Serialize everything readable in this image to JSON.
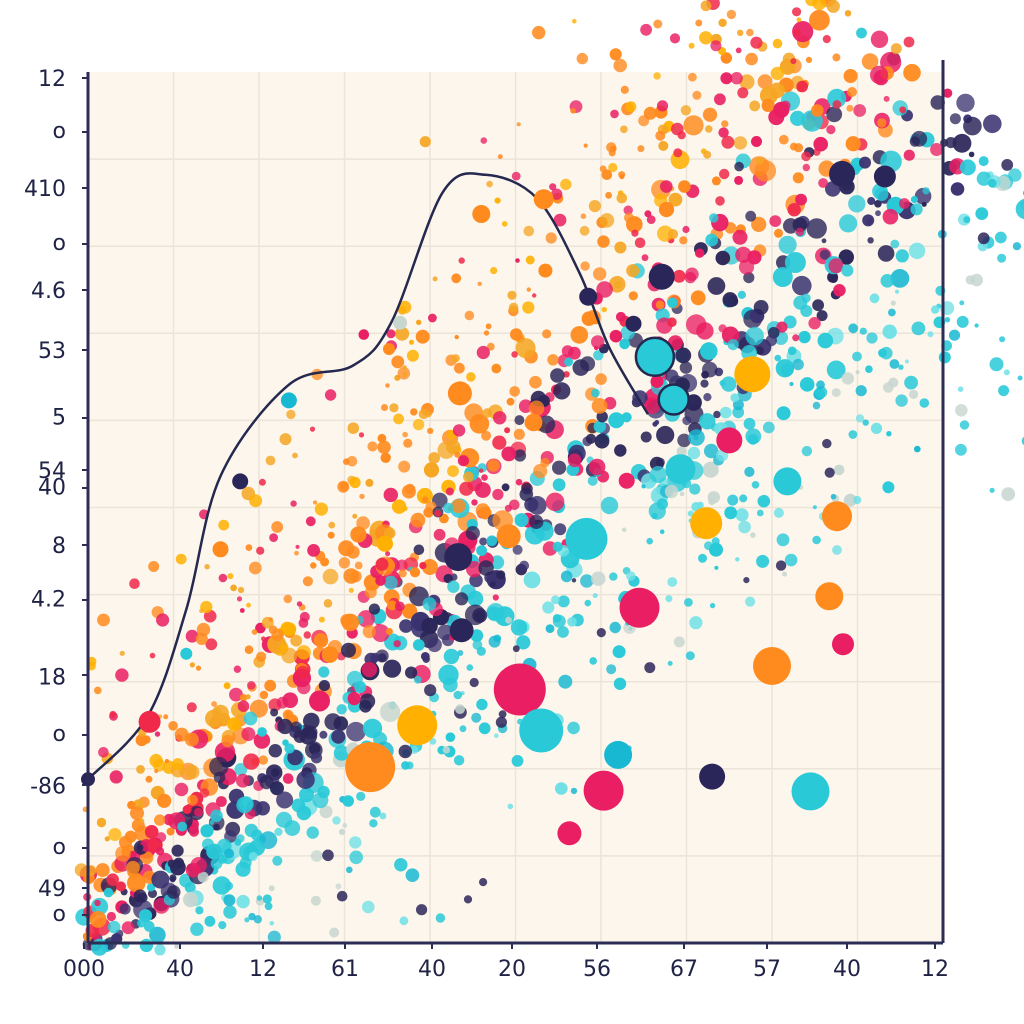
{
  "chart_data": {
    "type": "scatter",
    "title": "",
    "xlabel": "",
    "ylabel": "",
    "grid": true,
    "y_tick_labels": [
      "12",
      "o",
      "410",
      "o",
      "4.6",
      "53",
      "5",
      "54",
      "40",
      "8",
      "4.2",
      "18",
      "o",
      "-86",
      "o",
      "49",
      "o"
    ],
    "x_tick_labels": [
      "000",
      "40",
      "12",
      "61",
      "40",
      "20",
      "56",
      "67",
      "57",
      "40",
      "12"
    ],
    "xlim": [
      0,
      100
    ],
    "ylim": [
      0,
      100
    ],
    "colors": {
      "background": "#fcf6ec",
      "axis": "#2b2d55",
      "grid": "#ece4d8",
      "curve": "#25284f",
      "palette": [
        "#ff8a1e",
        "#f5a623",
        "#e91e63",
        "#f0284a",
        "#2b2659",
        "#3a3370",
        "#29c9d8",
        "#19b8d2",
        "#6fe0e6",
        "#c8d6d0",
        "#ffb000"
      ]
    },
    "curve": {
      "name": "",
      "points": [
        {
          "x": 0,
          "y": 18.8
        },
        {
          "x": 7,
          "y": 26.1
        },
        {
          "x": 11.5,
          "y": 38.3
        },
        {
          "x": 15.5,
          "y": 53.6
        },
        {
          "x": 23.5,
          "y": 64.1
        },
        {
          "x": 31,
          "y": 66.3
        },
        {
          "x": 35.5,
          "y": 71.3
        },
        {
          "x": 41.5,
          "y": 86.2
        },
        {
          "x": 46.5,
          "y": 88.2
        },
        {
          "x": 52.5,
          "y": 85.5
        },
        {
          "x": 57.5,
          "y": 76.9
        },
        {
          "x": 61,
          "y": 68.3
        },
        {
          "x": 65.5,
          "y": 60.7
        }
      ]
    },
    "curve_markers": [
      {
        "x": 0,
        "y": 18.8,
        "c": 4,
        "r": 7
      },
      {
        "x": 7.2,
        "y": 25.4,
        "c": 3,
        "r": 11
      },
      {
        "x": 11.5,
        "y": 33.2,
        "c": 6,
        "r": 6
      },
      {
        "x": 15.5,
        "y": 45.2,
        "c": 0,
        "r": 8
      },
      {
        "x": 17.8,
        "y": 53.0,
        "c": 4,
        "r": 8
      },
      {
        "x": 23.5,
        "y": 62.3,
        "c": 7,
        "r": 8
      },
      {
        "x": 35.2,
        "y": 68.2,
        "c": 0,
        "r": 6
      },
      {
        "x": 36.5,
        "y": 71.2,
        "c": 9,
        "r": 7
      },
      {
        "x": 46,
        "y": 83.7,
        "c": 0,
        "r": 9
      },
      {
        "x": 53.3,
        "y": 85.4,
        "c": 0,
        "r": 10
      },
      {
        "x": 53.5,
        "y": 77.2,
        "c": 0,
        "r": 7
      },
      {
        "x": 58.5,
        "y": 74.2,
        "c": 4,
        "r": 9
      },
      {
        "x": 63.8,
        "y": 71.1,
        "c": 4,
        "r": 8
      },
      {
        "x": 66.3,
        "y": 67.3,
        "c": 6,
        "r": 19
      },
      {
        "x": 68.5,
        "y": 62.4,
        "c": 6,
        "r": 15
      }
    ],
    "bubbles": [
      {
        "x": 33,
        "y": 20.2,
        "c": 0,
        "r": 25
      },
      {
        "x": 38.5,
        "y": 25.0,
        "c": 10,
        "r": 20
      },
      {
        "x": 50.5,
        "y": 29.1,
        "c": 2,
        "r": 26
      },
      {
        "x": 53,
        "y": 24.4,
        "c": 6,
        "r": 22
      },
      {
        "x": 58.3,
        "y": 46.4,
        "c": 6,
        "r": 21
      },
      {
        "x": 64.5,
        "y": 38.5,
        "c": 2,
        "r": 20
      },
      {
        "x": 60.3,
        "y": 17.5,
        "c": 2,
        "r": 20
      },
      {
        "x": 80,
        "y": 31.8,
        "c": 0,
        "r": 19
      },
      {
        "x": 77.7,
        "y": 65.3,
        "c": 10,
        "r": 18
      },
      {
        "x": 72.3,
        "y": 48.2,
        "c": 10,
        "r": 16
      },
      {
        "x": 84.5,
        "y": 17.4,
        "c": 6,
        "r": 19
      },
      {
        "x": 43.7,
        "y": 35.9,
        "c": 4,
        "r": 12
      },
      {
        "x": 43.5,
        "y": 63.1,
        "c": 0,
        "r": 12
      },
      {
        "x": 69.3,
        "y": 54.4,
        "c": 6,
        "r": 15
      },
      {
        "x": 81.8,
        "y": 53.0,
        "c": 6,
        "r": 14
      },
      {
        "x": 87.6,
        "y": 49.0,
        "c": 0,
        "r": 15
      },
      {
        "x": 88.2,
        "y": 88.3,
        "c": 4,
        "r": 13
      },
      {
        "x": 93.2,
        "y": 88.0,
        "c": 4,
        "r": 11
      },
      {
        "x": 67.1,
        "y": 76.5,
        "c": 4,
        "r": 13
      },
      {
        "x": 43.3,
        "y": 44.3,
        "c": 4,
        "r": 14
      },
      {
        "x": 75,
        "y": 57.7,
        "c": 2,
        "r": 13
      },
      {
        "x": 88.3,
        "y": 34.3,
        "c": 2,
        "r": 11
      },
      {
        "x": 86.7,
        "y": 39.8,
        "c": 0,
        "r": 14
      },
      {
        "x": 49.2,
        "y": 46.7,
        "c": 0,
        "r": 12
      },
      {
        "x": 56.3,
        "y": 12.6,
        "c": 2,
        "r": 12
      },
      {
        "x": 62,
        "y": 21.6,
        "c": 7,
        "r": 14
      },
      {
        "x": 73,
        "y": 19.1,
        "c": 4,
        "r": 13
      }
    ]
  }
}
